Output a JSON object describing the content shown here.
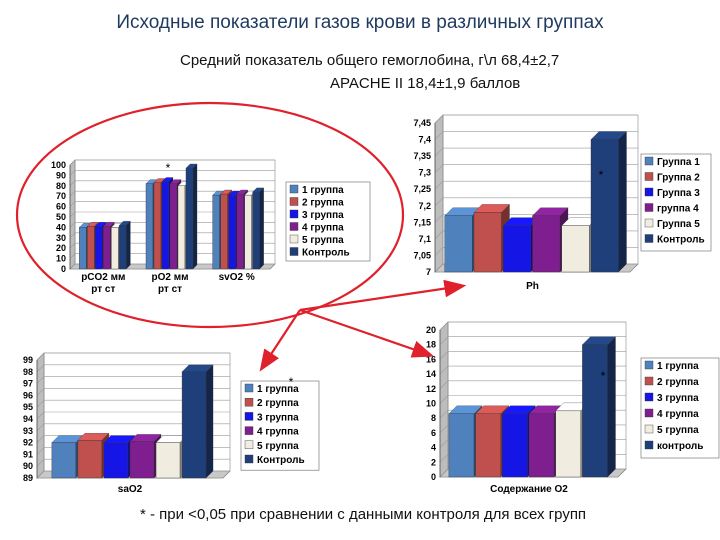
{
  "header": {
    "title": "Исходные показатели газов крови в различных группах",
    "subtitle_line1": "Средний показатель общего гемоглобина, г\\л 68,4±2,7",
    "subtitle_line2": "APACHE II 18,4±1,9 баллов"
  },
  "footnote": "* - при <0,05 при сравнении с данными контроля для всех групп",
  "colors": {
    "series": [
      "#4f81bd",
      "#c0504d",
      "#1515e6",
      "#7f1f8f",
      "#f0ede0",
      "#1f3f7a"
    ],
    "ellipse": "#e0202a",
    "arrow": "#e0202a"
  },
  "chart_data": [
    {
      "type": "bar",
      "categories": [
        "pCO2 мм рт ст",
        "pO2 мм рт ст",
        "svO2 %"
      ],
      "series": [
        {
          "name": "1 группа",
          "values": [
            40,
            82,
            71
          ]
        },
        {
          "name": "2 группа",
          "values": [
            41,
            83,
            72
          ]
        },
        {
          "name": "3 группа",
          "values": [
            41,
            84,
            71
          ]
        },
        {
          "name": "4 группа",
          "values": [
            41,
            82,
            72
          ]
        },
        {
          "name": "5 группа",
          "values": [
            40,
            80,
            71
          ]
        },
        {
          "name": "Контроль",
          "values": [
            42,
            97,
            74
          ]
        }
      ],
      "ylim": [
        0,
        100
      ],
      "yticks": [
        "0",
        "10",
        "20",
        "30",
        "40",
        "50",
        "60",
        "70",
        "80",
        "90",
        "100"
      ],
      "annotations": [
        "*"
      ]
    },
    {
      "type": "bar",
      "categories": [
        "Ph"
      ],
      "xlabel": "Ph",
      "series": [
        {
          "name": "Группа 1",
          "values": [
            7.17
          ]
        },
        {
          "name": "Группа 2",
          "values": [
            7.18
          ]
        },
        {
          "name": "Группа 3",
          "values": [
            7.14
          ]
        },
        {
          "name": "группа 4",
          "values": [
            7.17
          ]
        },
        {
          "name": "Группа 5",
          "values": [
            7.14
          ]
        },
        {
          "name": "Контроль",
          "values": [
            7.4
          ]
        }
      ],
      "ylim": [
        7,
        7.45
      ],
      "yticks": [
        "7",
        "7,05",
        "7,1",
        "7,15",
        "7,2",
        "7,25",
        "7,3",
        "7,35",
        "7,4",
        "7,45"
      ],
      "annotations": [
        "*"
      ]
    },
    {
      "type": "bar",
      "categories": [
        "saO2"
      ],
      "xlabel": "saO2",
      "series": [
        {
          "name": "1 группа",
          "values": [
            92
          ]
        },
        {
          "name": "2 группа",
          "values": [
            92.2
          ]
        },
        {
          "name": "3 группа",
          "values": [
            92
          ]
        },
        {
          "name": "4 группа",
          "values": [
            92.1
          ]
        },
        {
          "name": "5 группа",
          "values": [
            92
          ]
        },
        {
          "name": "Контроль",
          "values": [
            98
          ]
        }
      ],
      "ylim": [
        89,
        99
      ],
      "yticks": [
        "89",
        "90",
        "91",
        "92",
        "93",
        "94",
        "95",
        "96",
        "97",
        "98",
        "99"
      ],
      "annotations": [
        "*"
      ]
    },
    {
      "type": "bar",
      "categories": [
        "Содержание О2"
      ],
      "xlabel": "Содержание О2",
      "series": [
        {
          "name": "1 группа",
          "values": [
            8.6
          ]
        },
        {
          "name": "2 группа",
          "values": [
            8.6
          ]
        },
        {
          "name": "3 группа",
          "values": [
            8.6
          ]
        },
        {
          "name": "4 группа",
          "values": [
            8.6
          ]
        },
        {
          "name": "5 группа",
          "values": [
            9.0
          ]
        },
        {
          "name": "контроль",
          "values": [
            18
          ]
        }
      ],
      "ylim": [
        0,
        20
      ],
      "yticks": [
        "0",
        "2",
        "4",
        "6",
        "8",
        "10",
        "12",
        "14",
        "16",
        "18",
        "20"
      ],
      "annotations": [
        "*"
      ]
    }
  ]
}
